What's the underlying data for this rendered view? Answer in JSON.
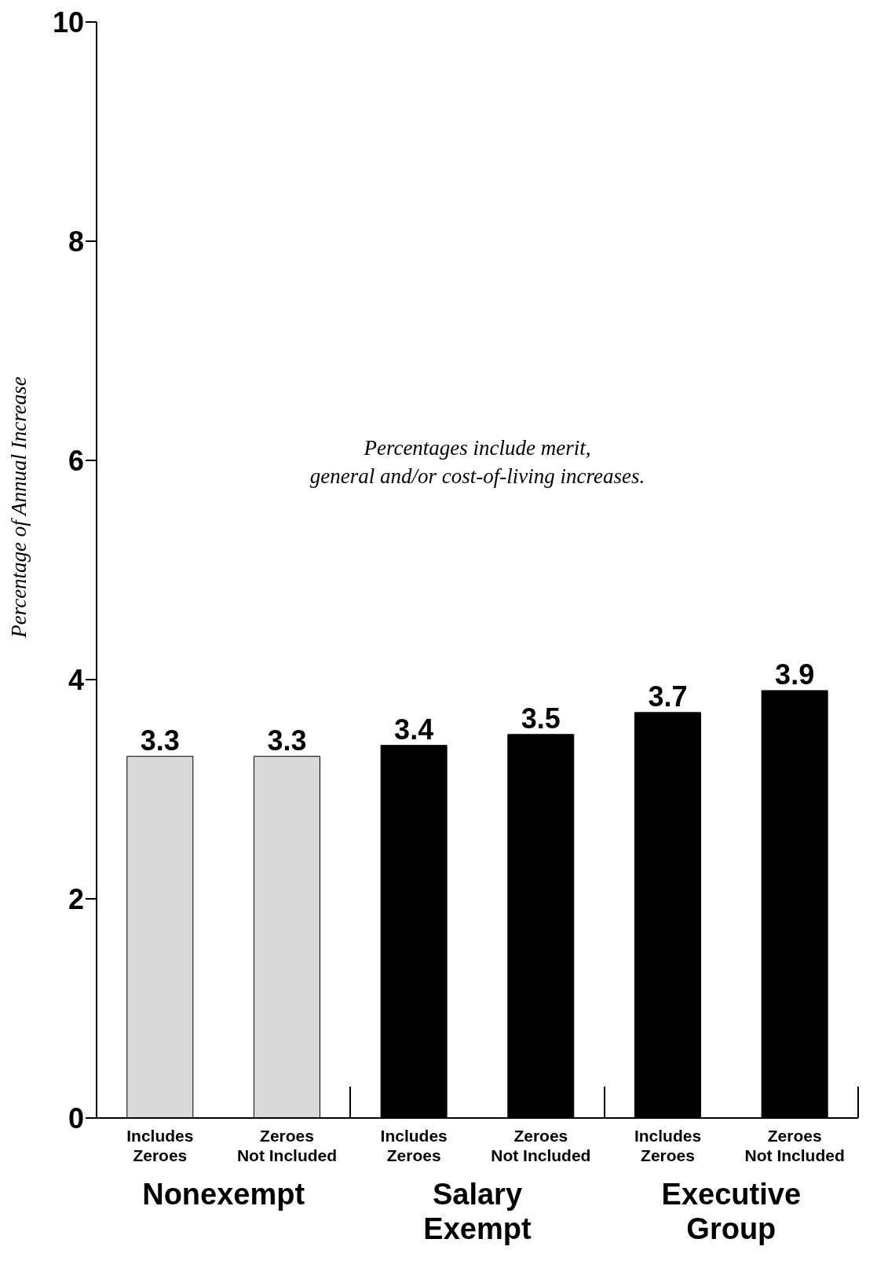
{
  "chart_data": {
    "type": "bar",
    "ylabel": "Percentage of Annual Increase",
    "categories": [
      "Includes\nZeroes",
      "Zeroes\nNot Included",
      "Includes\nZeroes",
      "Zeroes\nNot Included",
      "Includes\nZeroes",
      "Zeroes\nNot Included"
    ],
    "values": [
      3.3,
      3.3,
      3.4,
      3.5,
      3.7,
      3.9
    ],
    "colors": [
      "#d9d9d9",
      "#d9d9d9",
      "#000000",
      "#000000",
      "#000000",
      "#000000"
    ],
    "ylim": [
      0,
      10
    ],
    "yticks": [
      0,
      2,
      4,
      6,
      8,
      10
    ],
    "data_labels": true,
    "annotations": [
      "Percentages include merit,\ngeneral and/or cost-of-living increases.",
      "Nonexempt",
      "Salary\nExempt",
      "Executive\nGroup"
    ]
  }
}
